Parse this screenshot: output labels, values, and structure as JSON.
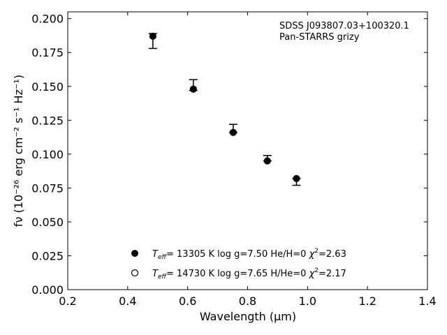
{
  "chart_data": {
    "type": "scatter",
    "xlabel": "Wavelength (μm)",
    "ylabel": "fν (10⁻²⁶ erg cm⁻² s⁻¹ Hz⁻¹)",
    "xlim": [
      0.2,
      1.4
    ],
    "ylim": [
      0.0,
      0.205
    ],
    "xticks": [
      0.2,
      0.4,
      0.6,
      0.8,
      1.0,
      1.2,
      1.4
    ],
    "xtick_labels": [
      "0.2",
      "0.4",
      "0.6",
      "0.8",
      "1.0",
      "1.2",
      "1.4"
    ],
    "yticks": [
      0.0,
      0.025,
      0.05,
      0.075,
      0.1,
      0.125,
      0.15,
      0.175,
      0.2
    ],
    "ytick_labels": [
      "0.000",
      "0.025",
      "0.050",
      "0.075",
      "0.100",
      "0.125",
      "0.150",
      "0.175",
      "0.200"
    ],
    "grid": false,
    "annotations": [
      "SDSS J093807.03+100320.1",
      "Pan-STARRS grizy"
    ],
    "observed": {
      "x": [
        0.484,
        0.619,
        0.752,
        0.866,
        0.963
      ],
      "y": [
        0.186,
        0.15,
        0.118,
        0.097,
        0.08
      ],
      "yerr_low": [
        0.008,
        0.003,
        0.002,
        0.002,
        0.003
      ],
      "yerr_high": [
        0.003,
        0.005,
        0.004,
        0.002,
        0.002
      ]
    },
    "series": [
      {
        "marker": "filled-circle",
        "label": "T_eff= 13305 K  log g=7.50  He/H=0  χ²=2.63",
        "x": [
          0.484,
          0.619,
          0.752,
          0.866,
          0.963
        ],
        "y": [
          0.187,
          0.148,
          0.116,
          0.095,
          0.082
        ]
      },
      {
        "marker": "open-circle",
        "label": "T_eff= 14730 K  log g=7.65  H/He=0  χ²=2.17",
        "x": [],
        "y": []
      }
    ],
    "legend": [
      {
        "marker": "filled-circle",
        "teff_prefix": "T",
        "teff_sub": "eff",
        "text": "= 13305 K  log g=7.50  He/H=0  ",
        "chi": "χ",
        "chi_sup": "2",
        "chi_val": "=2.63"
      },
      {
        "marker": "open-circle",
        "teff_prefix": "T",
        "teff_sub": "eff",
        "text": "= 14730 K  log g=7.65  H/He=0  ",
        "chi": "χ",
        "chi_sup": "2",
        "chi_val": "=2.17"
      }
    ],
    "legend_position": "lower-center"
  }
}
